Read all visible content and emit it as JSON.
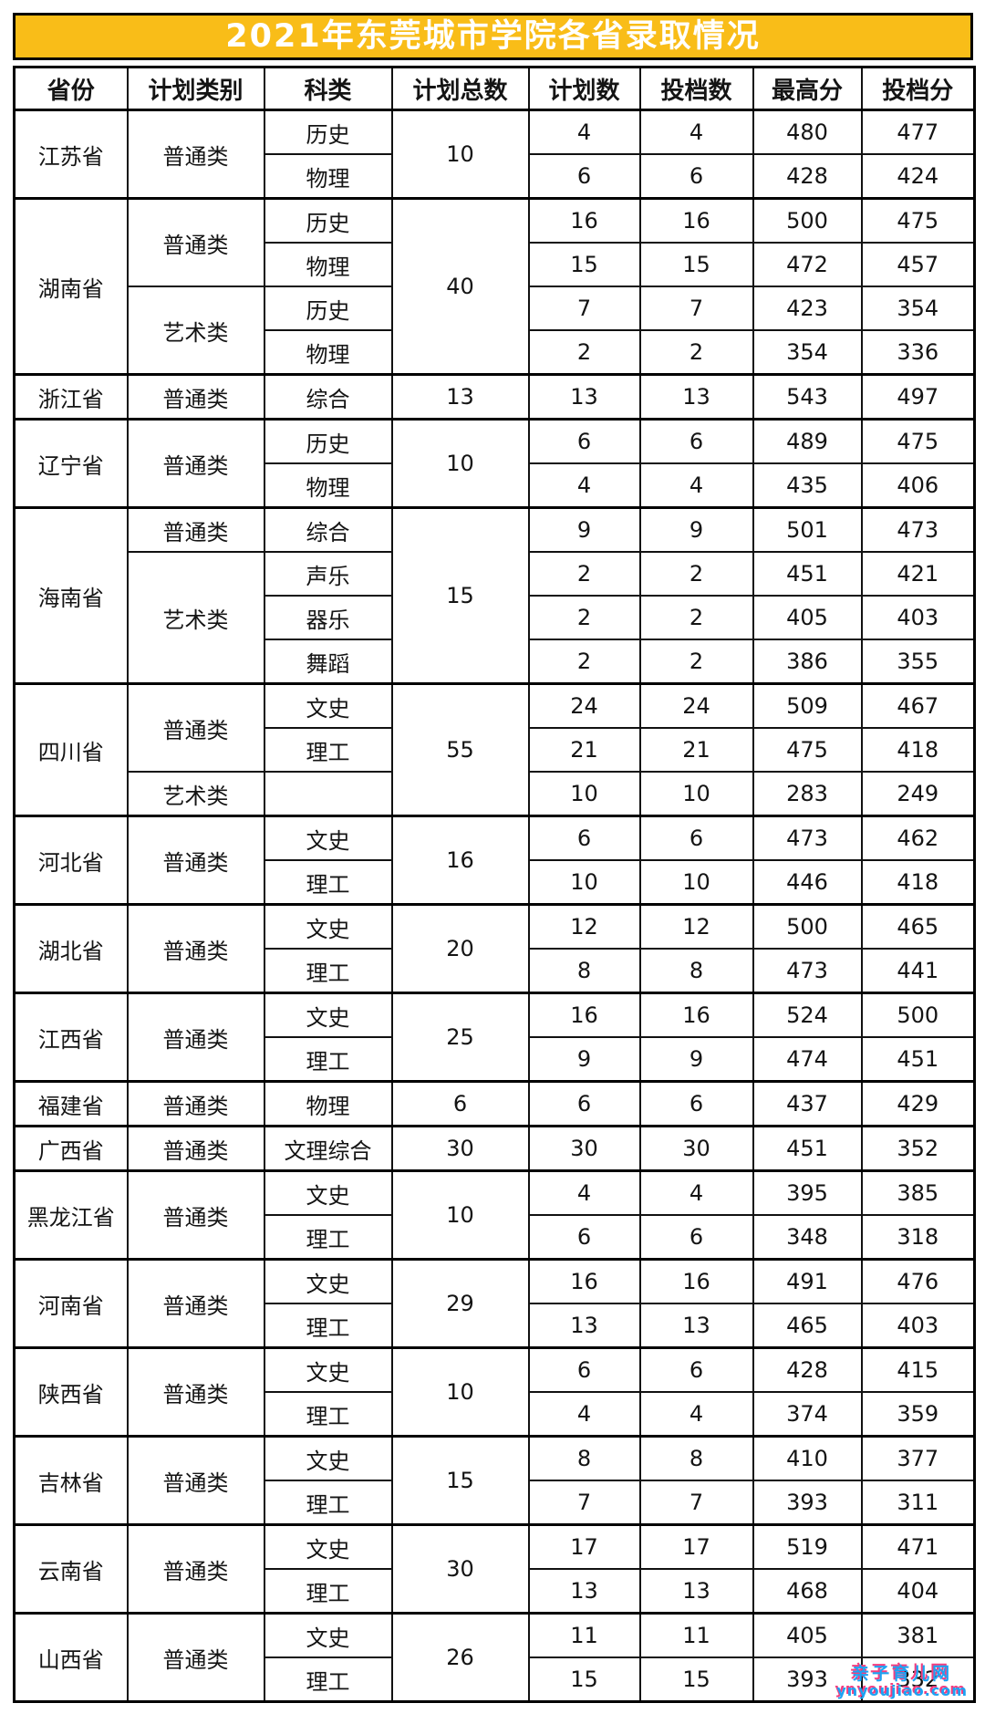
{
  "title": "2021年东莞城市学院各省录取情况",
  "columns": [
    "省份",
    "计划类别",
    "科类",
    "计划总数",
    "计划数",
    "投档数",
    "最高分",
    "投档分"
  ],
  "provinces": [
    {
      "name": "江苏省",
      "total": 10,
      "groups": [
        {
          "category": "普通类",
          "rows": [
            {
              "subject": "历史",
              "plan": 4,
              "filed": 4,
              "max": 480,
              "score": 477
            },
            {
              "subject": "物理",
              "plan": 6,
              "filed": 6,
              "max": 428,
              "score": 424
            }
          ]
        }
      ]
    },
    {
      "name": "湖南省",
      "total": 40,
      "groups": [
        {
          "category": "普通类",
          "rows": [
            {
              "subject": "历史",
              "plan": 16,
              "filed": 16,
              "max": 500,
              "score": 475
            },
            {
              "subject": "物理",
              "plan": 15,
              "filed": 15,
              "max": 472,
              "score": 457
            }
          ]
        },
        {
          "category": "艺术类",
          "rows": [
            {
              "subject": "历史",
              "plan": 7,
              "filed": 7,
              "max": 423,
              "score": 354
            },
            {
              "subject": "物理",
              "plan": 2,
              "filed": 2,
              "max": 354,
              "score": 336
            }
          ]
        }
      ]
    },
    {
      "name": "浙江省",
      "total": 13,
      "groups": [
        {
          "category": "普通类",
          "rows": [
            {
              "subject": "综合",
              "plan": 13,
              "filed": 13,
              "max": 543,
              "score": 497
            }
          ]
        }
      ]
    },
    {
      "name": "辽宁省",
      "total": 10,
      "groups": [
        {
          "category": "普通类",
          "rows": [
            {
              "subject": "历史",
              "plan": 6,
              "filed": 6,
              "max": 489,
              "score": 475
            },
            {
              "subject": "物理",
              "plan": 4,
              "filed": 4,
              "max": 435,
              "score": 406
            }
          ]
        }
      ]
    },
    {
      "name": "海南省",
      "total": 15,
      "groups": [
        {
          "category": "普通类",
          "rows": [
            {
              "subject": "综合",
              "plan": 9,
              "filed": 9,
              "max": 501,
              "score": 473
            }
          ]
        },
        {
          "category": "艺术类",
          "rows": [
            {
              "subject": "声乐",
              "plan": 2,
              "filed": 2,
              "max": 451,
              "score": 421
            },
            {
              "subject": "器乐",
              "plan": 2,
              "filed": 2,
              "max": 405,
              "score": 403
            },
            {
              "subject": "舞蹈",
              "plan": 2,
              "filed": 2,
              "max": 386,
              "score": 355
            }
          ]
        }
      ]
    },
    {
      "name": "四川省",
      "total": 55,
      "groups": [
        {
          "category": "普通类",
          "rows": [
            {
              "subject": "文史",
              "plan": 24,
              "filed": 24,
              "max": 509,
              "score": 467
            },
            {
              "subject": "理工",
              "plan": 21,
              "filed": 21,
              "max": 475,
              "score": 418
            }
          ]
        },
        {
          "category": "艺术类",
          "rows": [
            {
              "subject": "",
              "plan": 10,
              "filed": 10,
              "max": 283,
              "score": 249
            }
          ]
        }
      ]
    },
    {
      "name": "河北省",
      "total": 16,
      "groups": [
        {
          "category": "普通类",
          "rows": [
            {
              "subject": "文史",
              "plan": 6,
              "filed": 6,
              "max": 473,
              "score": 462
            },
            {
              "subject": "理工",
              "plan": 10,
              "filed": 10,
              "max": 446,
              "score": 418
            }
          ]
        }
      ]
    },
    {
      "name": "湖北省",
      "total": 20,
      "groups": [
        {
          "category": "普通类",
          "rows": [
            {
              "subject": "文史",
              "plan": 12,
              "filed": 12,
              "max": 500,
              "score": 465
            },
            {
              "subject": "理工",
              "plan": 8,
              "filed": 8,
              "max": 473,
              "score": 441
            }
          ]
        }
      ]
    },
    {
      "name": "江西省",
      "total": 25,
      "groups": [
        {
          "category": "普通类",
          "rows": [
            {
              "subject": "文史",
              "plan": 16,
              "filed": 16,
              "max": 524,
              "score": 500
            },
            {
              "subject": "理工",
              "plan": 9,
              "filed": 9,
              "max": 474,
              "score": 451
            }
          ]
        }
      ]
    },
    {
      "name": "福建省",
      "total": 6,
      "groups": [
        {
          "category": "普通类",
          "rows": [
            {
              "subject": "物理",
              "plan": 6,
              "filed": 6,
              "max": 437,
              "score": 429
            }
          ]
        }
      ]
    },
    {
      "name": "广西省",
      "total": 30,
      "groups": [
        {
          "category": "普通类",
          "rows": [
            {
              "subject": "文理综合",
              "plan": 30,
              "filed": 30,
              "max": 451,
              "score": 352
            }
          ]
        }
      ]
    },
    {
      "name": "黑龙江省",
      "total": 10,
      "groups": [
        {
          "category": "普通类",
          "rows": [
            {
              "subject": "文史",
              "plan": 4,
              "filed": 4,
              "max": 395,
              "score": 385
            },
            {
              "subject": "理工",
              "plan": 6,
              "filed": 6,
              "max": 348,
              "score": 318
            }
          ]
        }
      ]
    },
    {
      "name": "河南省",
      "total": 29,
      "groups": [
        {
          "category": "普通类",
          "rows": [
            {
              "subject": "文史",
              "plan": 16,
              "filed": 16,
              "max": 491,
              "score": 476
            },
            {
              "subject": "理工",
              "plan": 13,
              "filed": 13,
              "max": 465,
              "score": 403
            }
          ]
        }
      ]
    },
    {
      "name": "陕西省",
      "total": 10,
      "groups": [
        {
          "category": "普通类",
          "rows": [
            {
              "subject": "文史",
              "plan": 6,
              "filed": 6,
              "max": 428,
              "score": 415
            },
            {
              "subject": "理工",
              "plan": 4,
              "filed": 4,
              "max": 374,
              "score": 359
            }
          ]
        }
      ]
    },
    {
      "name": "吉林省",
      "total": 15,
      "groups": [
        {
          "category": "普通类",
          "rows": [
            {
              "subject": "文史",
              "plan": 8,
              "filed": 8,
              "max": 410,
              "score": 377
            },
            {
              "subject": "理工",
              "plan": 7,
              "filed": 7,
              "max": 393,
              "score": 311
            }
          ]
        }
      ]
    },
    {
      "name": "云南省",
      "total": 30,
      "groups": [
        {
          "category": "普通类",
          "rows": [
            {
              "subject": "文史",
              "plan": 17,
              "filed": 17,
              "max": 519,
              "score": 471
            },
            {
              "subject": "理工",
              "plan": 13,
              "filed": 13,
              "max": 468,
              "score": 404
            }
          ]
        }
      ]
    },
    {
      "name": "山西省",
      "total": 26,
      "groups": [
        {
          "category": "普通类",
          "rows": [
            {
              "subject": "文史",
              "plan": 11,
              "filed": 11,
              "max": 405,
              "score": 381
            },
            {
              "subject": "理工",
              "plan": 15,
              "filed": 15,
              "max": 393,
              "score": 332
            }
          ]
        }
      ]
    }
  ],
  "watermark": {
    "name": "亲子育儿网",
    "url": "ynyoujiao.com"
  },
  "colors": {
    "title_bg": "#F9BD18",
    "title_text": "#FFFFFF",
    "border": "#111111",
    "watermark_blue": "#1DA2F3",
    "watermark_pink": "#F43D7F"
  }
}
